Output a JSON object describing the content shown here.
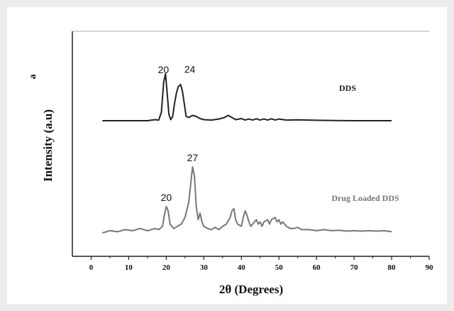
{
  "chart_data": {
    "type": "line",
    "title": "",
    "panel_label": "a",
    "xlabel": "2θ (Degrees)",
    "ylabel": "Intensity (a.u)",
    "xlim": [
      -5,
      90
    ],
    "xticks": [
      0,
      10,
      20,
      30,
      40,
      50,
      60,
      70,
      80,
      90
    ],
    "grid": false,
    "series": [
      {
        "name": "DDS",
        "color": "#222222",
        "x": [
          3,
          15,
          17,
          18,
          18.7,
          19.3,
          19.8,
          20.2,
          20.7,
          21.2,
          21.7,
          22.2,
          22.7,
          23.2,
          23.8,
          24.3,
          24.8,
          25.3,
          26,
          27,
          28,
          29,
          30,
          32,
          34,
          35.5,
          36.5,
          37.5,
          38.5,
          40,
          41,
          42,
          43,
          44,
          45,
          46,
          47,
          48,
          49,
          50,
          52,
          55,
          60,
          65,
          70,
          75,
          80
        ],
        "values": [
          0,
          0,
          0.5,
          0.3,
          4,
          18,
          22,
          14,
          3,
          0.5,
          2,
          8,
          13,
          16,
          17,
          14,
          8,
          2,
          1.5,
          2.5,
          2,
          1,
          0.5,
          0.3,
          0.8,
          1.5,
          2.5,
          1.5,
          0.5,
          1,
          0.3,
          0.8,
          0.3,
          0.9,
          0.3,
          0.8,
          0.3,
          0.9,
          0.3,
          0.8,
          0.3,
          0.4,
          0.2,
          0.1,
          0,
          0,
          0
        ]
      },
      {
        "name": "Drug Loaded DDS",
        "color": "#777777",
        "x": [
          3,
          5,
          7,
          9,
          11,
          13,
          15,
          17,
          18,
          19,
          19.5,
          20,
          20.5,
          21,
          22,
          24,
          25,
          26,
          26.5,
          27,
          27.5,
          28,
          28.5,
          29,
          29.5,
          30,
          31,
          32,
          33,
          34,
          35,
          36,
          37,
          37.5,
          38,
          38.5,
          39,
          40,
          40.5,
          41,
          41.5,
          42,
          42.5,
          43,
          44,
          44.5,
          45,
          45.5,
          46,
          47,
          47.5,
          48,
          49,
          49.5,
          50,
          50.5,
          51,
          52,
          53,
          54,
          55,
          56,
          58,
          60,
          62,
          64,
          66,
          68,
          70,
          72,
          74,
          76,
          78,
          80
        ],
        "values": [
          0,
          1,
          0.5,
          1.5,
          1,
          2,
          1,
          2,
          1.5,
          3,
          8,
          12,
          10,
          4,
          2,
          4,
          7,
          14,
          22,
          30,
          26,
          12,
          6,
          9,
          5,
          3,
          2,
          1.5,
          2.5,
          1.5,
          3,
          4,
          7,
          10,
          11,
          6,
          4,
          3,
          7,
          10,
          8,
          5,
          3,
          4,
          6,
          4,
          5,
          3,
          5,
          6,
          4,
          6,
          7,
          5,
          6,
          4,
          5,
          3,
          2,
          2,
          2.5,
          1.5,
          1.5,
          1,
          1.5,
          1,
          1.2,
          0.8,
          1,
          0.8,
          1,
          0.8,
          1,
          0.5
        ]
      }
    ],
    "annotations": [
      {
        "text": "20",
        "series": 0,
        "x": 20
      },
      {
        "text": "24",
        "series": 0,
        "x": 24
      },
      {
        "text": "27",
        "series": 1,
        "x": 27
      },
      {
        "text": "20",
        "series": 1,
        "x": 20
      }
    ]
  }
}
